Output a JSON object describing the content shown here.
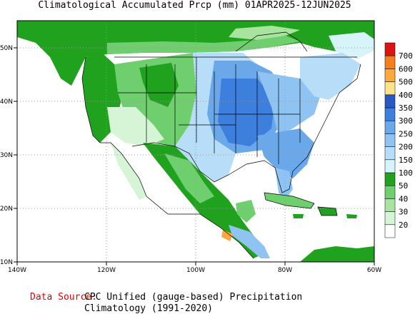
{
  "title": "Climatological Accumulated Prcp (mm) 01APR2025-12JUN2025",
  "map": {
    "lon_ticks": [
      "140W",
      "120W",
      "100W",
      "80W",
      "60W"
    ],
    "lat_ticks": [
      "10N",
      "20N",
      "30N",
      "40N",
      "50N"
    ],
    "lon_range": [
      -140,
      -60
    ],
    "lat_range": [
      10,
      55
    ]
  },
  "legend": {
    "levels": [
      "20",
      "30",
      "40",
      "50",
      "100",
      "150",
      "200",
      "250",
      "300",
      "350",
      "400",
      "500",
      "600",
      "700"
    ],
    "colors": [
      "#ffffff",
      "#d6f5d6",
      "#a8e4a0",
      "#6fcf6f",
      "#21a21f",
      "#d7f4fb",
      "#b7ddf8",
      "#8fc4f2",
      "#6aa8ea",
      "#3c7fdc",
      "#2858c4",
      "#fde38a",
      "#fba83c",
      "#f77e1c",
      "#dd1414"
    ]
  },
  "source": {
    "label": "Data Source:",
    "line1": "CPC Unified (gauge-based) Precipitation",
    "line2": "Climatology (1991-2020)"
  }
}
